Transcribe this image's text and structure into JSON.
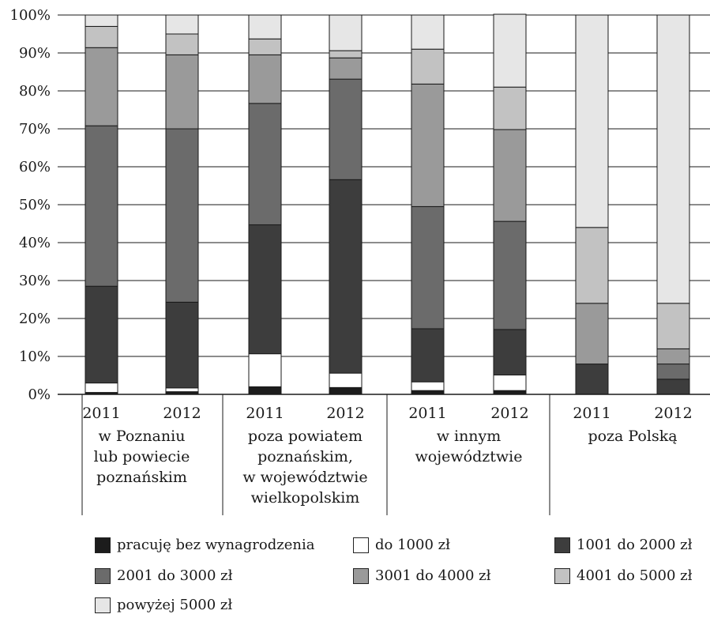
{
  "chart_data": {
    "type": "bar",
    "stacked": true,
    "y_ticks": [
      "0%",
      "10%",
      "20%",
      "30%",
      "40%",
      "50%",
      "60%",
      "70%",
      "80%",
      "90%",
      "100%"
    ],
    "ylim": [
      0,
      100
    ],
    "groups": [
      {
        "label": [
          "w Poznaniu",
          "lub powiecie",
          "poznańskim"
        ],
        "years": [
          "2011",
          "2012"
        ]
      },
      {
        "label": [
          "poza powiatem",
          "poznańskim,",
          "w województwie",
          "wielkopolskim"
        ],
        "years": [
          "2011",
          "2012"
        ]
      },
      {
        "label": [
          "w innym",
          "województwie"
        ],
        "years": [
          "2011",
          "2012"
        ]
      },
      {
        "label": [
          "poza Polską"
        ],
        "years": [
          "2011",
          "2012"
        ]
      }
    ],
    "series": [
      {
        "name": "pracuję bez wynagrodzenia",
        "color": "#1c1c1c",
        "values": [
          0.5,
          0.7,
          2.0,
          1.8,
          1.0,
          1.0,
          0,
          0
        ]
      },
      {
        "name": "do 1000 zł",
        "color": "#ffffff",
        "values": [
          2.5,
          1.0,
          8.7,
          3.8,
          2.3,
          4.1,
          0,
          0
        ]
      },
      {
        "name": "1001 do 2000 zł",
        "color": "#3d3d3d",
        "values": [
          25.5,
          22.6,
          34.0,
          51.0,
          14.0,
          12.0,
          8.0,
          4.0
        ]
      },
      {
        "name": "2001 do 3000 zł",
        "color": "#6b6b6b",
        "values": [
          42.3,
          45.7,
          32.0,
          26.5,
          32.2,
          28.5,
          0,
          4.0
        ]
      },
      {
        "name": "3001 do 4000 zł",
        "color": "#9a9a9a",
        "values": [
          20.6,
          19.5,
          12.8,
          5.6,
          32.3,
          24.2,
          16.0,
          4.0
        ]
      },
      {
        "name": "4001 do 5000 zł",
        "color": "#c2c2c2",
        "values": [
          5.6,
          5.5,
          4.2,
          1.9,
          9.2,
          11.2,
          20.0,
          12.0
        ]
      },
      {
        "name": "powyżej 5000 zł",
        "color": "#e6e6e6",
        "values": [
          3.0,
          5.0,
          6.3,
          9.4,
          9.0,
          19.2,
          56.0,
          76.0
        ]
      }
    ]
  }
}
